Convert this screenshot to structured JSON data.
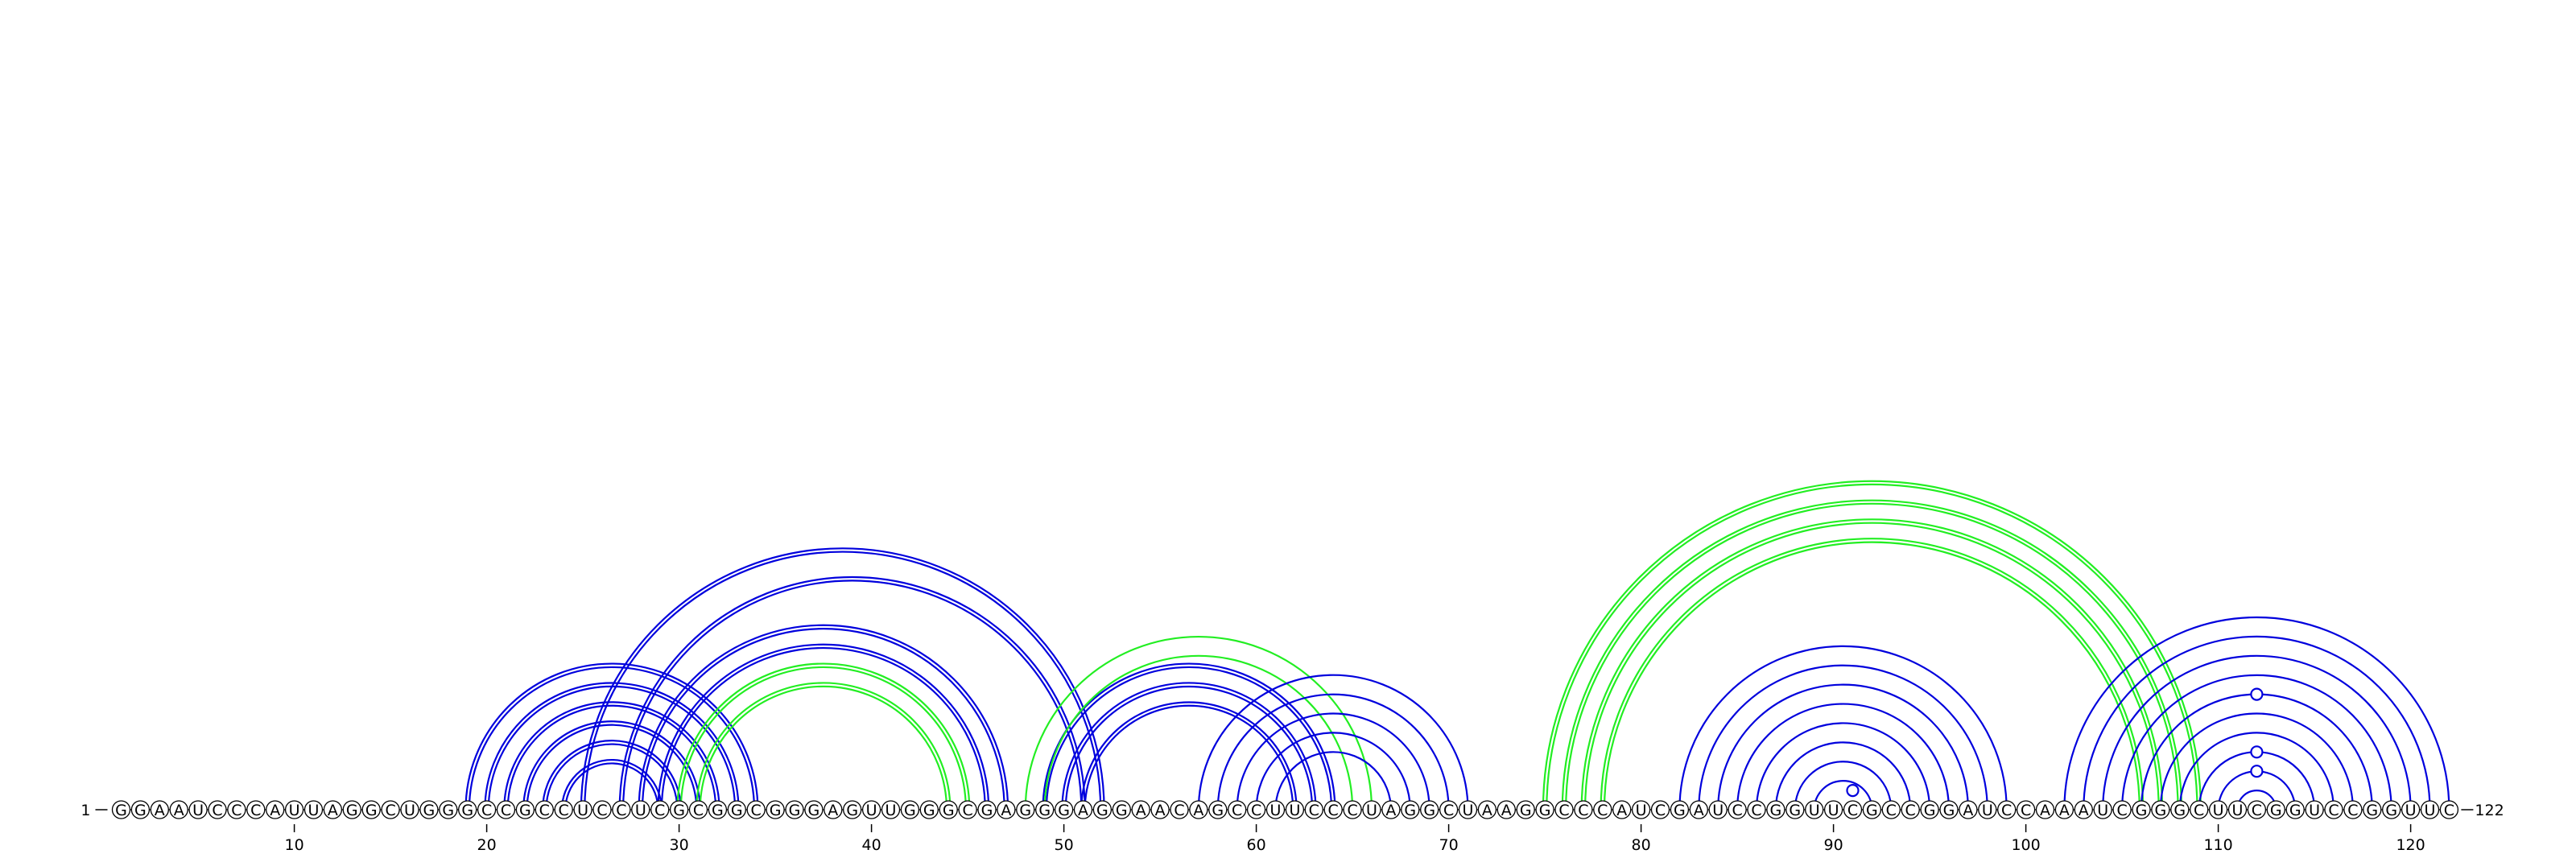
{
  "diagram": {
    "sequence": "GGAAUCCCAUUAGGCUGGGCCGCCUCCUCGCGGCGGGAGUUGGGCGAGGGAGGAACAGCCUUCCCUAGGCUAAGGCCCAUCGAUCCGGUUCGCCGGAUCCAAAUCGGGCUUCGGUCCGGUUC",
    "start_label": "1",
    "end_label": "122",
    "tick_positions": [
      10,
      20,
      30,
      40,
      50,
      60,
      70,
      80,
      90,
      100,
      110,
      120
    ],
    "tick_labels": [
      "10",
      "20",
      "30",
      "40",
      "50",
      "60",
      "70",
      "80",
      "90",
      "100",
      "110",
      "120"
    ],
    "colors": {
      "blue": "#0000dd",
      "green": "#22ee22"
    },
    "arc_groups": [
      {
        "name": "stem-a",
        "color": "blue",
        "double": true,
        "pairs": [
          [
            19,
            34
          ],
          [
            20,
            33
          ],
          [
            21,
            32
          ],
          [
            22,
            31
          ],
          [
            23,
            30
          ],
          [
            24,
            29
          ]
        ]
      },
      {
        "name": "stem-b",
        "color": "blue",
        "double": true,
        "pairs": [
          [
            25,
            52
          ],
          [
            27,
            51
          ],
          [
            28,
            47
          ],
          [
            29,
            46
          ]
        ]
      },
      {
        "name": "stem-c",
        "color": "green",
        "double": true,
        "pairs": [
          [
            30,
            45
          ],
          [
            31,
            44
          ]
        ]
      },
      {
        "name": "stem-d",
        "color": "blue",
        "double": true,
        "pairs": [
          [
            49,
            64
          ],
          [
            50,
            63
          ],
          [
            51,
            62
          ]
        ]
      },
      {
        "name": "stem-e",
        "color": "green",
        "double": false,
        "pairs": [
          [
            48,
            66
          ],
          [
            49,
            65
          ]
        ]
      },
      {
        "name": "stem-f",
        "color": "blue",
        "double": false,
        "pairs": [
          [
            57,
            71
          ],
          [
            58,
            70
          ],
          [
            59,
            69
          ],
          [
            60,
            68
          ],
          [
            61,
            67
          ]
        ]
      },
      {
        "name": "stem-g",
        "color": "green",
        "double": true,
        "pairs": [
          [
            75,
            109
          ],
          [
            76,
            108
          ],
          [
            77,
            107
          ],
          [
            78,
            106
          ]
        ]
      },
      {
        "name": "stem-h",
        "color": "blue",
        "double": false,
        "pairs": [
          [
            82,
            99
          ],
          [
            83,
            98
          ],
          [
            84,
            97
          ],
          [
            85,
            96
          ],
          [
            86,
            95
          ],
          [
            87,
            94
          ],
          [
            88,
            93
          ],
          [
            89,
            92
          ]
        ]
      },
      {
        "name": "stem-i",
        "color": "blue",
        "double": false,
        "pairs": [
          [
            102,
            122
          ],
          [
            103,
            121
          ],
          [
            104,
            120
          ],
          [
            105,
            119
          ],
          [
            106,
            118
          ],
          [
            107,
            117
          ],
          [
            108,
            116
          ],
          [
            109,
            115
          ],
          [
            110,
            114
          ],
          [
            111,
            113
          ]
        ]
      }
    ],
    "marker_positions": [
      91,
      112,
      112,
      112
    ]
  }
}
